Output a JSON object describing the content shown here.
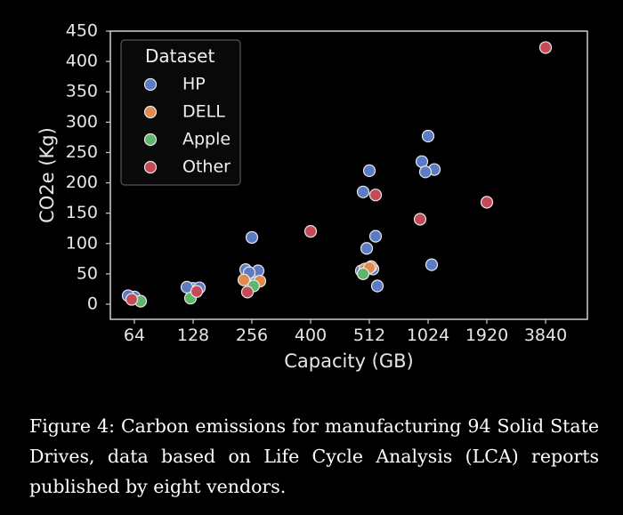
{
  "caption": "Figure 4: Carbon emissions for manufacturing 94 Solid State Drives, data based on Life Cycle Analysis (LCA) reports published by eight vendors.",
  "colors": {
    "background": "#000000",
    "HP": "#5b7cc4",
    "DELL": "#e08a4e",
    "Apple": "#5fb56a",
    "Other": "#c44a55",
    "marker_edge": "#e8e8e8"
  },
  "chart_data": {
    "type": "scatter",
    "xlabel": "Capacity (GB)",
    "ylabel": "CO2e (Kg)",
    "categories": [
      "64",
      "128",
      "256",
      "400",
      "512",
      "1024",
      "1920",
      "3840"
    ],
    "ylim": [
      0,
      450
    ],
    "yticks": [
      0,
      50,
      100,
      150,
      200,
      250,
      300,
      350,
      400,
      450
    ],
    "grid": false,
    "legend_title": "Dataset",
    "legend_position": "top-left",
    "series": [
      {
        "name": "HP",
        "color": "#5b7cc4",
        "points": [
          [
            "64",
            12
          ],
          [
            "64",
            14
          ],
          [
            "128",
            26
          ],
          [
            "128",
            28
          ],
          [
            "128",
            27
          ],
          [
            "256",
            110
          ],
          [
            "256",
            57
          ],
          [
            "256",
            55
          ],
          [
            "256",
            52
          ],
          [
            "256",
            35
          ],
          [
            "512",
            220
          ],
          [
            "512",
            185
          ],
          [
            "512",
            112
          ],
          [
            "512",
            92
          ],
          [
            "512",
            58
          ],
          [
            "512",
            55
          ],
          [
            "512",
            30
          ],
          [
            "1024",
            277
          ],
          [
            "1024",
            235
          ],
          [
            "1024",
            222
          ],
          [
            "1024",
            218
          ],
          [
            "1024",
            65
          ]
        ]
      },
      {
        "name": "DELL",
        "color": "#e08a4e",
        "points": [
          [
            "256",
            40
          ],
          [
            "256",
            38
          ],
          [
            "512",
            62
          ],
          [
            "512",
            58
          ],
          [
            "512",
            60
          ]
        ]
      },
      {
        "name": "Apple",
        "color": "#5fb56a",
        "points": [
          [
            "64",
            5
          ],
          [
            "128",
            10
          ],
          [
            "256",
            30
          ],
          [
            "512",
            50
          ]
        ]
      },
      {
        "name": "Other",
        "color": "#c44a55",
        "points": [
          [
            "64",
            8
          ],
          [
            "128",
            21
          ],
          [
            "256",
            20
          ],
          [
            "400",
            120
          ],
          [
            "512",
            180
          ],
          [
            "1024",
            140
          ],
          [
            "1920",
            168
          ],
          [
            "3840",
            423
          ]
        ]
      }
    ]
  }
}
